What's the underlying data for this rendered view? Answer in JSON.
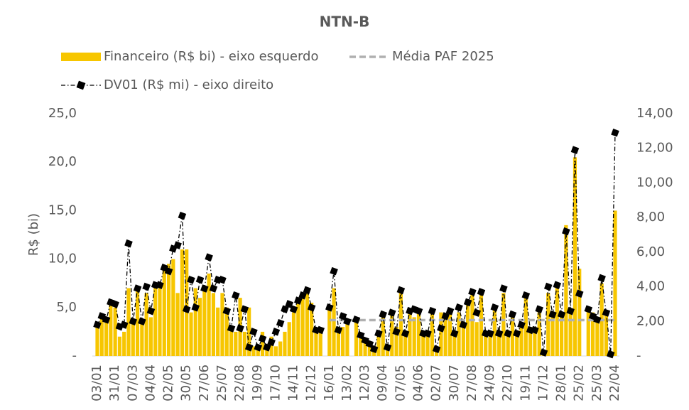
{
  "chart_data": {
    "type": "bar",
    "title": "NTN-B",
    "y_label": "R$ (bi)",
    "categories": [
      "03/01",
      null,
      null,
      null,
      "31/01",
      null,
      null,
      null,
      "07/03",
      null,
      null,
      null,
      "04/04",
      null,
      null,
      null,
      "02/05",
      null,
      null,
      null,
      "30/05",
      null,
      null,
      null,
      "27/06",
      null,
      null,
      null,
      "25/07",
      null,
      null,
      null,
      "22/08",
      null,
      null,
      null,
      "19/09",
      null,
      null,
      null,
      "17/10",
      null,
      null,
      null,
      "14/11",
      null,
      null,
      null,
      "12/12",
      null,
      null,
      null,
      "16/01",
      null,
      null,
      null,
      "13/02",
      null,
      null,
      null,
      "12/03",
      null,
      null,
      null,
      "09/04",
      null,
      null,
      null,
      "07/05",
      null,
      null,
      null,
      "04/06",
      null,
      null,
      null,
      "02/07",
      null,
      null,
      null,
      "30/07",
      null,
      null,
      null,
      "27/08",
      null,
      null,
      null,
      "24/09",
      null,
      null,
      null,
      "22/10",
      null,
      null,
      null,
      "19/11",
      null,
      null,
      null,
      "17/12",
      null,
      null,
      null,
      "28/01",
      null,
      null,
      null,
      "25/02",
      null,
      null,
      null,
      "25/03",
      null,
      null,
      null,
      "22/04"
    ],
    "series": [
      {
        "name": "Financeiro (R$ bi) - eixo esquerdo",
        "type": "bar",
        "color": "#f7c600",
        "axis": "y",
        "values": [
          3.0,
          4.0,
          3.5,
          5.5,
          5.0,
          2.0,
          2.5,
          7.0,
          3.5,
          7.0,
          3.5,
          6.5,
          4.0,
          7.5,
          7.0,
          9.0,
          9.5,
          10.0,
          6.5,
          11.0,
          11.0,
          4.5,
          7.0,
          6.0,
          7.0,
          8.5,
          6.5,
          5.0,
          6.5,
          5.0,
          3.0,
          2.5,
          6.0,
          2.5,
          5.0,
          1.0,
          1.0,
          2.5,
          1.0,
          2.0,
          1.0,
          1.5,
          2.5,
          3.5,
          4.5,
          5.5,
          6.5,
          7.0,
          5.5,
          2.5,
          2.5,
          null,
          5.0,
          7.0,
          2.5,
          3.0,
          3.5,
          null,
          3.5,
          2.0,
          1.5,
          1.5,
          1.0,
          2.5,
          4.0,
          1.0,
          4.5,
          3.0,
          6.5,
          2.5,
          4.5,
          4.0,
          4.5,
          2.5,
          2.5,
          4.5,
          0.8,
          4.5,
          4.0,
          4.5,
          2.5,
          4.5,
          3.0,
          5.5,
          6.5,
          3.5,
          6.5,
          2.5,
          2.5,
          5.0,
          2.5,
          6.5,
          2.5,
          4.5,
          2.5,
          3.5,
          6.0,
          3.0,
          3.0,
          4.5,
          0.5,
          6.5,
          4.5,
          7.5,
          4.5,
          13.5,
          4.5,
          20.5,
          9.0,
          null,
          5.0,
          4.5,
          3.5,
          7.5,
          4.5,
          0.5,
          15.0
        ]
      },
      {
        "name": "Média PAF 2025",
        "type": "line",
        "color": "#b0b0b0",
        "dash": true,
        "axis": "y",
        "values": [
          null,
          null,
          null,
          null,
          null,
          null,
          null,
          null,
          null,
          null,
          null,
          null,
          null,
          null,
          null,
          null,
          null,
          null,
          null,
          null,
          null,
          null,
          null,
          null,
          null,
          null,
          null,
          null,
          null,
          null,
          null,
          null,
          null,
          null,
          null,
          null,
          null,
          null,
          null,
          null,
          null,
          null,
          null,
          null,
          null,
          null,
          null,
          null,
          null,
          null,
          null,
          null,
          3.7,
          3.7,
          3.7,
          3.7,
          3.7,
          3.7,
          3.7,
          3.7,
          3.7,
          3.7,
          3.7,
          3.7,
          3.7,
          3.7,
          3.7,
          3.7,
          3.7,
          3.7,
          3.7,
          3.7,
          3.7,
          3.7,
          3.7,
          3.7,
          3.7,
          3.7,
          3.7,
          3.7,
          3.7,
          3.7,
          3.7,
          3.7,
          3.7,
          3.7,
          3.7,
          3.7,
          3.7,
          3.7,
          3.7,
          3.7,
          3.7,
          3.7,
          3.7,
          3.7,
          3.7,
          3.7,
          3.7,
          3.7,
          3.7,
          3.7,
          3.7,
          3.7,
          3.7,
          3.7,
          3.7,
          3.7,
          3.7,
          3.7,
          3.7,
          3.7,
          3.7,
          3.7,
          3.7,
          3.7,
          3.7
        ]
      },
      {
        "name": "DV01 (R$ mi) - eixo direito",
        "type": "line",
        "color": "#000000",
        "markers": true,
        "axis": "y2",
        "values": [
          1.8,
          2.3,
          2.1,
          3.1,
          3.0,
          1.7,
          1.8,
          6.5,
          2.0,
          3.9,
          2.0,
          4.0,
          2.6,
          4.1,
          4.1,
          5.1,
          4.9,
          6.2,
          6.4,
          8.1,
          2.7,
          4.4,
          2.8,
          4.4,
          3.9,
          5.7,
          3.9,
          4.4,
          4.4,
          2.6,
          1.6,
          3.5,
          1.6,
          2.7,
          0.5,
          1.4,
          0.5,
          1.0,
          0.5,
          0.8,
          1.4,
          1.9,
          2.7,
          3.0,
          2.7,
          3.2,
          3.5,
          3.8,
          2.8,
          1.5,
          1.5,
          null,
          2.8,
          4.9,
          1.5,
          2.3,
          2.0,
          null,
          2.1,
          1.2,
          0.9,
          0.7,
          0.4,
          1.3,
          2.4,
          0.5,
          2.5,
          1.4,
          3.8,
          1.3,
          2.6,
          2.7,
          2.6,
          1.3,
          1.3,
          2.6,
          0.4,
          1.6,
          2.3,
          2.6,
          1.3,
          2.8,
          1.8,
          3.1,
          3.7,
          2.5,
          3.7,
          1.3,
          1.3,
          2.8,
          1.3,
          3.9,
          1.3,
          2.4,
          1.3,
          1.8,
          3.5,
          1.5,
          1.5,
          2.7,
          0.2,
          4.0,
          2.4,
          4.1,
          2.4,
          7.2,
          2.6,
          11.9,
          3.6,
          null,
          2.7,
          2.3,
          2.1,
          4.5,
          2.5,
          0.1,
          12.9
        ]
      }
    ],
    "ylim": [
      0,
      25
    ],
    "yticks": [
      {
        "value": 0,
        "label": "-"
      },
      {
        "value": 5,
        "label": "5,0"
      },
      {
        "value": 10,
        "label": "10,0"
      },
      {
        "value": 15,
        "label": "15,0"
      },
      {
        "value": 20,
        "label": "20,0"
      },
      {
        "value": 25,
        "label": "25,0"
      }
    ],
    "y2lim": [
      0,
      14
    ],
    "y2ticks": [
      {
        "value": 0,
        "label": "-"
      },
      {
        "value": 2,
        "label": "2,00"
      },
      {
        "value": 4,
        "label": "4,00"
      },
      {
        "value": 6,
        "label": "6,00"
      },
      {
        "value": 8,
        "label": "8,00"
      },
      {
        "value": 10,
        "label": "10,00"
      },
      {
        "value": 12,
        "label": "12,00"
      },
      {
        "value": 14,
        "label": "14,00"
      }
    ],
    "grid": false
  }
}
